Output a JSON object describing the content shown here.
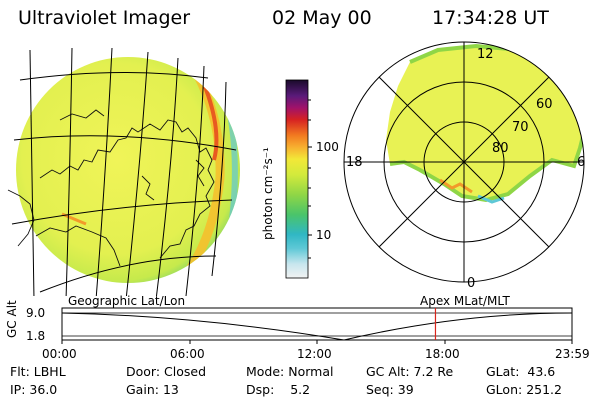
{
  "header": {
    "instrument": "Ultraviolet Imager",
    "date": "02 May 00",
    "time": "17:34:28 UT"
  },
  "colorbar": {
    "unit_label": "photon cm⁻²s⁻¹",
    "ticks": [
      "100",
      "10"
    ],
    "scale": "log"
  },
  "polar_plot": {
    "lat_labels": [
      "60",
      "70",
      "80"
    ],
    "mlt_labels": {
      "top": "12",
      "left": "18",
      "right": "6",
      "bottom": "0"
    }
  },
  "projection_labels": {
    "left": "Geographic Lat/Lon",
    "right": "Apex MLat/MLT"
  },
  "altitude_strip": {
    "ylabel": "GC Alt",
    "y_ticks": [
      "9.0",
      "1.8"
    ],
    "time_labels": [
      "00:00",
      "06:00",
      "12:00",
      "18:00",
      "23:59"
    ],
    "current_time_marker_hours": 17.575
  },
  "status": {
    "flt_label": "Flt:",
    "flt": "LBHL",
    "ip_label": "IP:",
    "ip": "36.0",
    "door_label": "Door:",
    "door": "Closed",
    "gain_label": "Gain:",
    "gain": "13",
    "mode_label": "Mode:",
    "mode": "Normal",
    "dsp_label": "Dsp:",
    "dsp": "5.2",
    "gcalt_label": "GC Alt:",
    "gcalt": "7.2 Re",
    "seq_label": "Seq:",
    "seq": "39",
    "glat_label": "GLat:",
    "glat": "43.6",
    "glon_label": "GLon:",
    "glon": "251.2"
  },
  "colors": {
    "aurora_base": "#e6f25a",
    "aurora_edge": "#9de04a",
    "marker": "#d9261c"
  }
}
